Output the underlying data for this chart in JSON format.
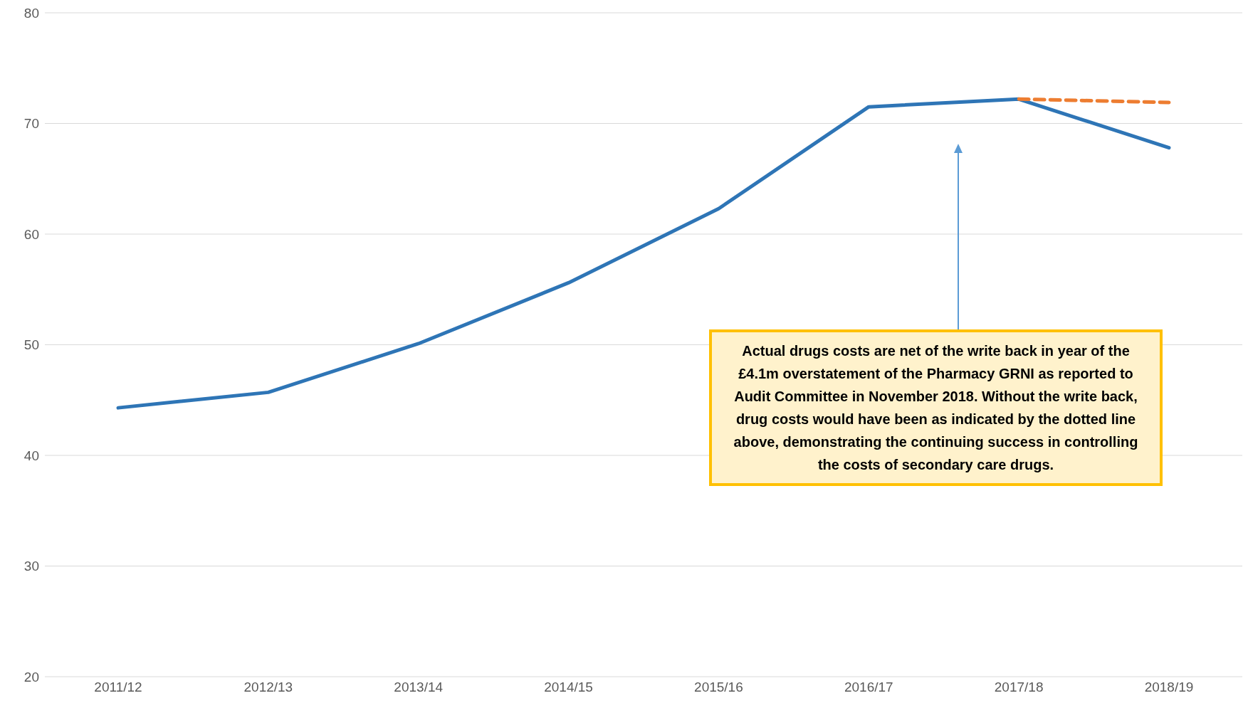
{
  "chart_data": {
    "type": "line",
    "categories": [
      "2011/12",
      "2012/13",
      "2013/14",
      "2014/15",
      "2015/16",
      "2016/17",
      "2017/18",
      "2018/19"
    ],
    "series": [
      {
        "color": "#2e75b6",
        "values": [
          44.3,
          45.7,
          50.1,
          55.6,
          62.3,
          71.5,
          72.2,
          67.8
        ],
        "line_style": "solid"
      },
      {
        "color": "#ed7d31",
        "values": [
          null,
          null,
          null,
          null,
          null,
          null,
          72.2,
          71.9
        ],
        "line_style": "dashed"
      }
    ],
    "ylim": [
      20,
      80
    ],
    "yticks": [
      20,
      30,
      40,
      50,
      60,
      70,
      80
    ],
    "grid": "y",
    "marker": "none",
    "annotations": [
      "Actual drugs costs are net of the write back in year of the £4.1m overstatement of the Pharmacy GRNI as reported to Audit Committee in November 2018. Without the write back, drug costs would have been as indicated by the dotted line above, demonstrating the continuing success in controlling the costs of secondary care drugs."
    ]
  }
}
